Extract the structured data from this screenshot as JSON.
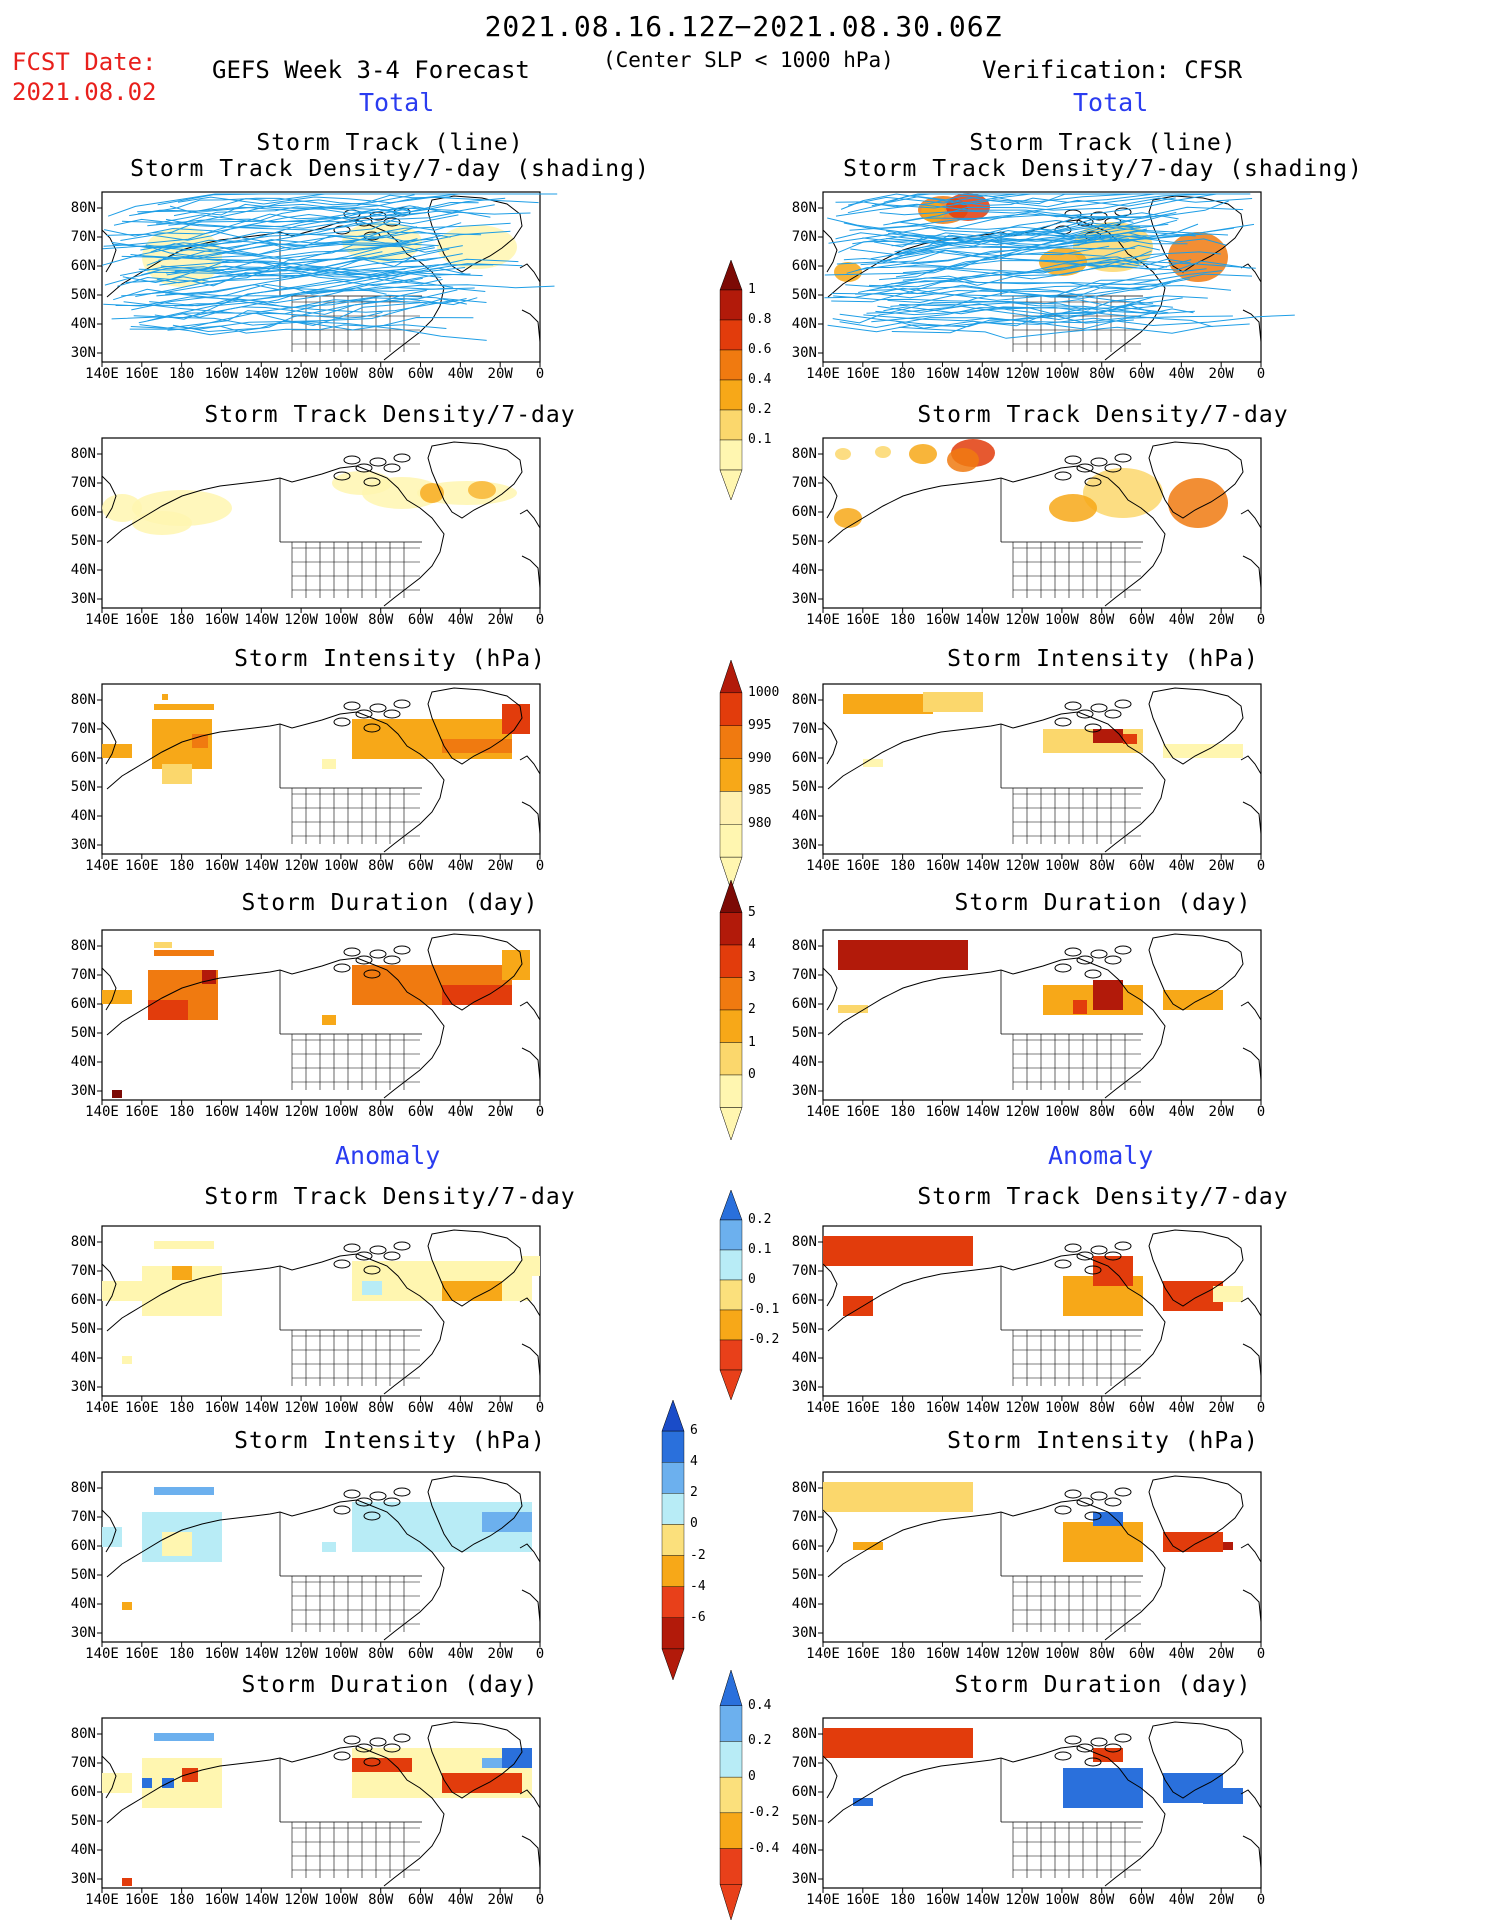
{
  "header": {
    "date_range": "2021.08.16.12Z−2021.08.30.06Z",
    "fcst_label": "FCST Date:",
    "fcst_date": "2021.08.02",
    "model": "GEFS Week 3-4 Forecast",
    "criteria": "(Center SLP < 1000 hPa)",
    "verification": "Verification: CFSR"
  },
  "sections": {
    "total": "Total",
    "anomaly": "Anomaly"
  },
  "panel_titles": {
    "track_line": "Storm Track (line)",
    "track_shading": "Storm Track Density/7-day (shading)",
    "density": "Storm Track Density/7-day",
    "intensity": "Storm Intensity (hPa)",
    "duration": "Storm Duration (day)"
  },
  "axes": {
    "lon_labels": [
      "140E",
      "160E",
      "180",
      "160W",
      "140W",
      "120W",
      "100W",
      "80W",
      "60W",
      "40W",
      "20W",
      "0"
    ],
    "lat_labels": [
      "80N",
      "70N",
      "60N",
      "50N",
      "40N",
      "30N"
    ]
  },
  "colorbars": {
    "density_total": {
      "levels": [
        "0.1",
        "0.2",
        "0.4",
        "0.6",
        "0.8",
        "1"
      ],
      "colors": [
        "#fff6b0",
        "#fbd76c",
        "#f7a818",
        "#f07a10",
        "#e23c0c",
        "#b21a0a",
        "#7c0a05"
      ]
    },
    "intensity_total": {
      "levels": [
        "1000",
        "995",
        "990",
        "985",
        "980"
      ],
      "colors": [
        "#fff6b0",
        "#fff1b0",
        "#f7a818",
        "#f07a10",
        "#e23c0c",
        "#b21a0a"
      ]
    },
    "duration_total": {
      "levels": [
        "0",
        "1",
        "2",
        "3",
        "4",
        "5"
      ],
      "colors": [
        "#fff6b0",
        "#fbd76c",
        "#f7a818",
        "#f07a10",
        "#e23c0c",
        "#b21a0a",
        "#7c0a05"
      ]
    },
    "density_anom": {
      "levels": [
        "0.2",
        "0.1",
        "0",
        "-0.1",
        "-0.2"
      ],
      "colors": [
        "#e8401a",
        "#f7a818",
        "#fbe07c",
        "#b8ecf6",
        "#6cb0ee",
        "#2a70dc"
      ]
    },
    "intensity_anom": {
      "levels": [
        "6",
        "4",
        "2",
        "0",
        "-2",
        "-4",
        "-6"
      ],
      "colors": [
        "#b21a0a",
        "#e8401a",
        "#f7a818",
        "#fbe07c",
        "#b8ecf6",
        "#6cb0ee",
        "#2a70dc",
        "#1a4cc8"
      ]
    },
    "duration_anom": {
      "levels": [
        "0.4",
        "0.2",
        "0",
        "-0.2",
        "-0.4"
      ],
      "colors": [
        "#e8401a",
        "#f7a818",
        "#fbe07c",
        "#b8ecf6",
        "#6cb0ee",
        "#2a70dc"
      ]
    }
  }
}
